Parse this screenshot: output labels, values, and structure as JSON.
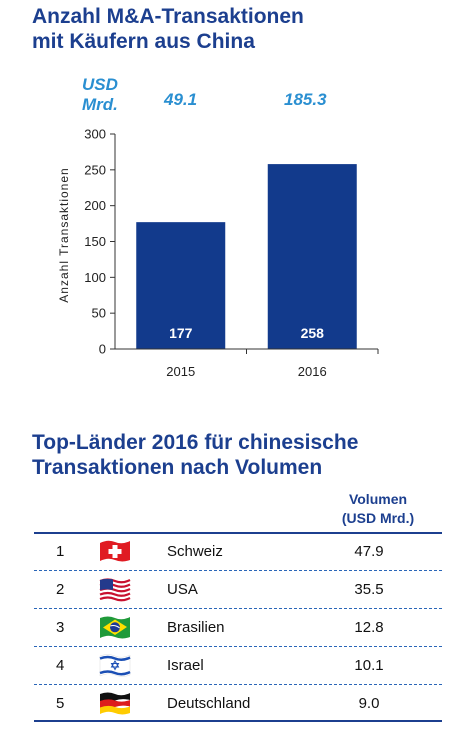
{
  "chart_title": [
    "Anzahl M&A-Transaktionen",
    "mit Käufern aus China"
  ],
  "usd_label": [
    "USD",
    "Mrd."
  ],
  "chart_data": {
    "type": "bar",
    "categories": [
      "2015",
      "2016"
    ],
    "values": [
      177,
      258
    ],
    "volume_labels": [
      "49.1",
      "185.3"
    ],
    "data_labels": [
      "177",
      "258"
    ],
    "ylabel": "Anzahl Transaktionen",
    "ylim": [
      0,
      300
    ],
    "yticks": [
      "0",
      "50",
      "100",
      "150",
      "200",
      "250",
      "300"
    ],
    "grid": false,
    "bar_color": "#123a8c"
  },
  "table_title": [
    "Top-Länder 2016 für chinesische",
    "Transaktionen nach Volumen"
  ],
  "volume_header": [
    "Volumen",
    "(USD Mrd.)"
  ],
  "countries": [
    {
      "rank": "1",
      "name": "Schweiz",
      "value": "47.9",
      "flag": "switzerland-flag-icon"
    },
    {
      "rank": "2",
      "name": "USA",
      "value": "35.5",
      "flag": "usa-flag-icon"
    },
    {
      "rank": "3",
      "name": "Brasilien",
      "value": "12.8",
      "flag": "brazil-flag-icon"
    },
    {
      "rank": "4",
      "name": "Israel",
      "value": "10.1",
      "flag": "israel-flag-icon"
    },
    {
      "rank": "5",
      "name": "Deutschland",
      "value": "9.0",
      "flag": "germany-flag-icon"
    }
  ]
}
